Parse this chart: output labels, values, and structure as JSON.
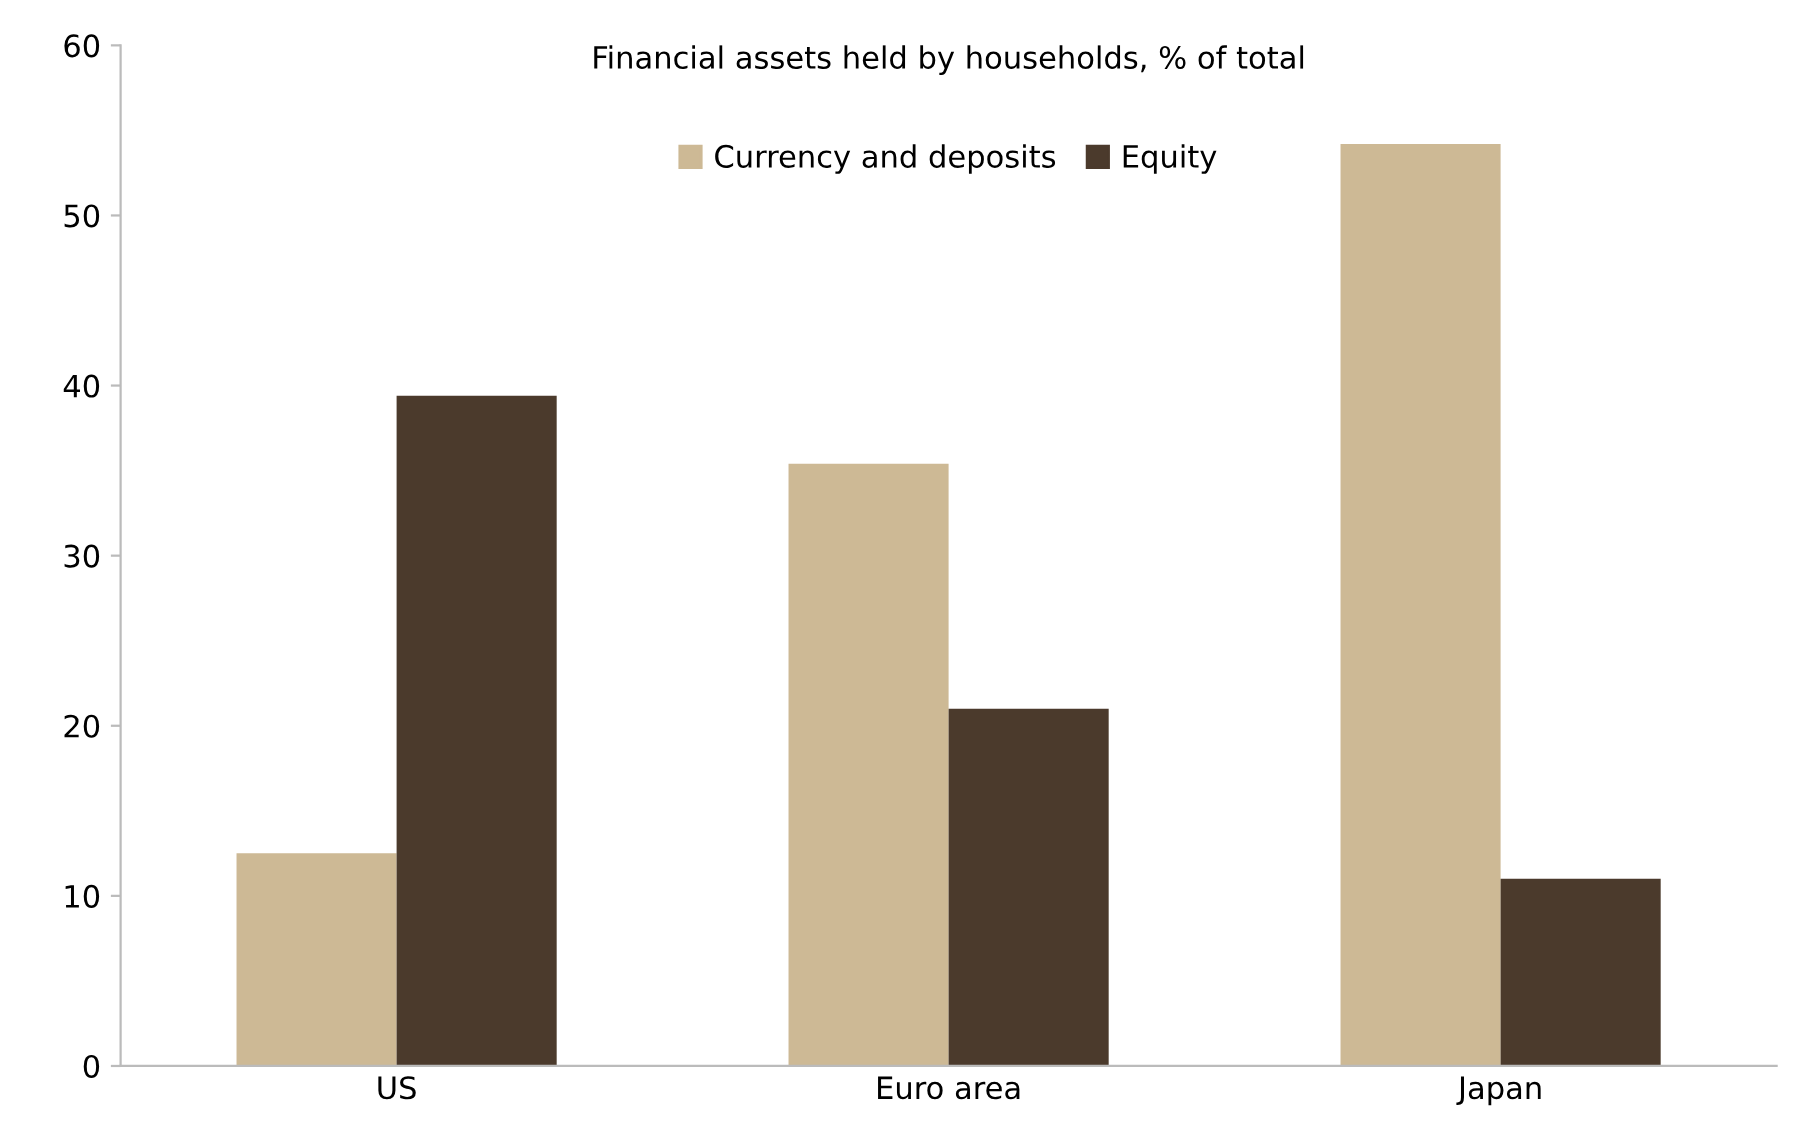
{
  "chart_data": {
    "type": "bar",
    "title": "Financial assets held by households, % of total",
    "categories": [
      "US",
      "Euro area",
      "Japan"
    ],
    "series": [
      {
        "name": "Currency and deposits",
        "color": "#cdb995",
        "values": [
          12.5,
          35.4,
          54.2
        ]
      },
      {
        "name": "Equity",
        "color": "#4b3a2c",
        "values": [
          39.4,
          21.0,
          11.0
        ]
      }
    ],
    "ylim": [
      0,
      60
    ],
    "yticks": [
      0,
      10,
      20,
      30,
      40,
      50,
      60
    ],
    "grid": false,
    "legend": "top"
  }
}
